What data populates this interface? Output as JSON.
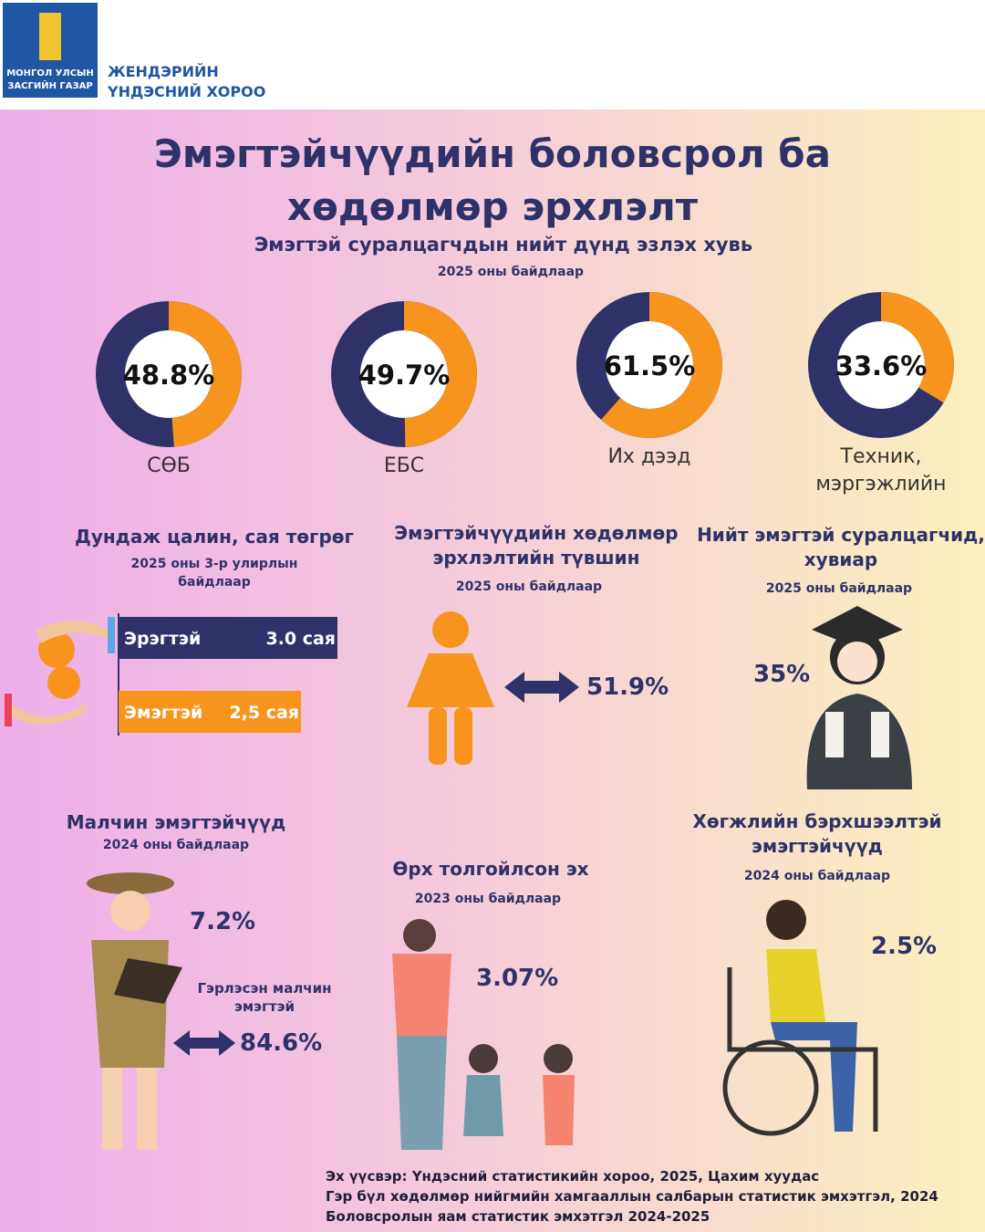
{
  "header": {
    "logo_text": [
      "МОНГОЛ УЛСЫН",
      "ЗАСГИЙН ГАЗАР"
    ],
    "org": [
      "ЖЕНДЭРИЙН",
      "ҮНДЭСНИЙ ХОРОО"
    ]
  },
  "title": "Эмэгтэйчүүдийн боловсрол ба хөдөлмөр эрхлэлт",
  "chart_data": [
    {
      "type": "donut",
      "title": "Эмэгтэй суралцагчдын нийт дүнд эзлэх хувь",
      "subtitle": "2025 оны байдлаар",
      "categories": [
        "СӨБ",
        "ЕБС",
        "Их дээд",
        "Техник, мэргэжлийн"
      ],
      "values": [
        48.8,
        49.7,
        61.5,
        33.6
      ],
      "value_labels": [
        "48.8%",
        "49.7%",
        "61.5%",
        "33.6%"
      ],
      "color": "#f7941d",
      "rest_color": "#2e3268"
    },
    {
      "type": "bar",
      "title": "Дундаж цалин, сая төгрөг",
      "subtitle": "2025 оны 3-р улирлын байдлаар",
      "categories": [
        "Эрэгтэй",
        "Эмэгтэй"
      ],
      "values": [
        3.0,
        2.5
      ],
      "value_labels": [
        "3.0 сая",
        "2,5 сая"
      ],
      "colors": [
        "#2e3268",
        "#f7941d"
      ]
    }
  ],
  "employment": {
    "title": "Эмэгтэйчүүдийн хөдөлмөр эрхлэлтийн түвшин",
    "subtitle": "2025 оны байдлаар",
    "value": "51.9%"
  },
  "students": {
    "title": "Нийт эмэгтэй суралцагчид, хувиар",
    "subtitle": "2025 оны байдлаар",
    "value": "35%"
  },
  "herders": {
    "title": "Малчин эмэгтэйчүүд",
    "subtitle": "2024 оны байдлаар",
    "value": "7.2%",
    "note": "Гэрлэсэн малчин эмэгтэй",
    "note_value": "84.6%"
  },
  "single_mothers": {
    "title": "Өрх толгойлсон эх",
    "subtitle": "2023 оны байдлаар",
    "value": "3.07%"
  },
  "disabled": {
    "title": "Хөгжлийн бэрхшээлтэй эмэгтэйчүүд",
    "subtitle": "2024 оны байдлаар",
    "value": "2.5%"
  },
  "sources": [
    "Эх үүсвэр: Үндэсний статистикийн хороо, 2025, Цахим хуудас",
    "Гэр бүл хөдөлмөр нийгмийн хамгааллын салбарын статистик эмхэтгэл, 2024",
    "Боловсролын яам статистик эмхэтгэл 2024-2025"
  ]
}
